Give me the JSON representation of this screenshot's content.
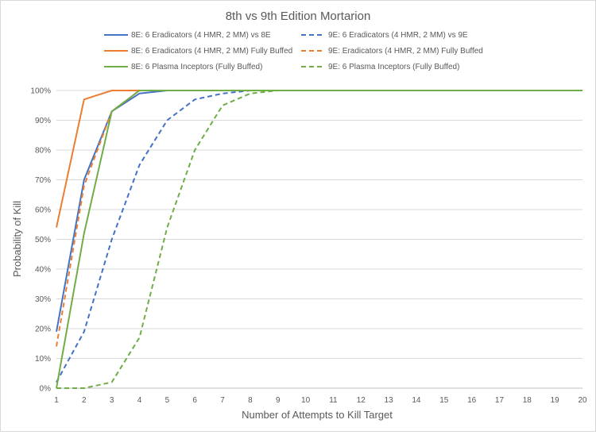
{
  "chart_data": {
    "type": "line",
    "title": "8th vs 9th Edition Mortarion",
    "xlabel": "Number of Attempts to Kill Target",
    "ylabel": "Probability of Kill",
    "x": [
      1,
      2,
      3,
      4,
      5,
      6,
      7,
      8,
      9,
      10,
      11,
      12,
      13,
      14,
      15,
      16,
      17,
      18,
      19,
      20
    ],
    "x_tick_labels": [
      "1",
      "2",
      "3",
      "4",
      "5",
      "6",
      "7",
      "8",
      "9",
      "10",
      "11",
      "12",
      "13",
      "14",
      "15",
      "16",
      "17",
      "18",
      "19",
      "20"
    ],
    "ylim": [
      0,
      1
    ],
    "y_ticks": [
      0,
      0.1,
      0.2,
      0.3,
      0.4,
      0.5,
      0.6,
      0.7,
      0.8,
      0.9,
      1.0
    ],
    "y_tick_labels": [
      "0%",
      "10%",
      "20%",
      "30%",
      "40%",
      "50%",
      "60%",
      "70%",
      "80%",
      "90%",
      "100%"
    ],
    "grid": "horizontal",
    "legend_position": "top",
    "series": [
      {
        "name": "8E: 6 Eradicators (4 HMR, 2 MM) vs 8E",
        "color": "#4472c4",
        "dash": "solid",
        "values": [
          0.19,
          0.7,
          0.93,
          0.99,
          1.0,
          1.0,
          1.0,
          1.0,
          1.0,
          1.0,
          1.0,
          1.0,
          1.0,
          1.0,
          1.0,
          1.0,
          1.0,
          1.0,
          1.0,
          1.0
        ]
      },
      {
        "name": "9E: 6 Eradicators (4 HMR, 2 MM) vs 9E",
        "color": "#4472c4",
        "dash": "dashed",
        "values": [
          0.02,
          0.19,
          0.5,
          0.75,
          0.9,
          0.97,
          0.99,
          1.0,
          1.0,
          1.0,
          1.0,
          1.0,
          1.0,
          1.0,
          1.0,
          1.0,
          1.0,
          1.0,
          1.0,
          1.0
        ]
      },
      {
        "name": "8E: 6 Eradicators (4 HMR, 2 MM) Fully Buffed",
        "color": "#ed7d31",
        "dash": "solid",
        "values": [
          0.54,
          0.97,
          1.0,
          1.0,
          1.0,
          1.0,
          1.0,
          1.0,
          1.0,
          1.0,
          1.0,
          1.0,
          1.0,
          1.0,
          1.0,
          1.0,
          1.0,
          1.0,
          1.0,
          1.0
        ]
      },
      {
        "name": "9E: Eradicators (4 HMR, 2 MM) Fully Buffed",
        "color": "#ed7d31",
        "dash": "dashed",
        "values": [
          0.14,
          0.68,
          0.93,
          1.0,
          1.0,
          1.0,
          1.0,
          1.0,
          1.0,
          1.0,
          1.0,
          1.0,
          1.0,
          1.0,
          1.0,
          1.0,
          1.0,
          1.0,
          1.0,
          1.0
        ]
      },
      {
        "name": "8E: 6 Plasma Inceptors (Fully Buffed)",
        "color": "#70ad47",
        "dash": "solid",
        "values": [
          0.0,
          0.52,
          0.93,
          1.0,
          1.0,
          1.0,
          1.0,
          1.0,
          1.0,
          1.0,
          1.0,
          1.0,
          1.0,
          1.0,
          1.0,
          1.0,
          1.0,
          1.0,
          1.0,
          1.0
        ]
      },
      {
        "name": "9E: 6 Plasma Inceptors (Fully Buffed)",
        "color": "#70ad47",
        "dash": "dashed",
        "values": [
          0.0,
          0.0,
          0.02,
          0.17,
          0.54,
          0.8,
          0.95,
          0.99,
          1.0,
          1.0,
          1.0,
          1.0,
          1.0,
          1.0,
          1.0,
          1.0,
          1.0,
          1.0,
          1.0,
          1.0
        ]
      }
    ]
  }
}
